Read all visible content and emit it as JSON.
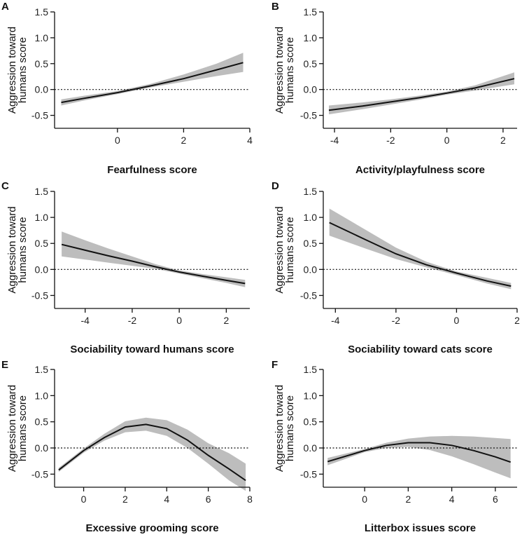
{
  "figure": {
    "style": {
      "band_color": "#bdbdbd",
      "line_color": "#111111"
    }
  },
  "chart_data": [
    {
      "panel": "A",
      "type": "line",
      "xlabel": "Fearfulness score",
      "ylabel_lines": [
        "Aggression toward",
        "humans score"
      ],
      "xlim": [
        -1.9,
        4.0
      ],
      "ylim": [
        -0.75,
        1.5
      ],
      "xticks": [
        0,
        2,
        4
      ],
      "yticks": [
        -0.5,
        0.0,
        0.5,
        1.0,
        1.5
      ],
      "ytick_labels": [
        "-0.5",
        "0.0",
        "0.5",
        "1.0",
        "1.5"
      ],
      "reference_y": 0,
      "x": [
        -1.7,
        -1.0,
        0.0,
        1.0,
        2.0,
        3.0,
        3.8
      ],
      "y": [
        -0.25,
        -0.17,
        -0.06,
        0.07,
        0.21,
        0.38,
        0.52
      ],
      "lower": [
        -0.31,
        -0.21,
        -0.09,
        0.04,
        0.15,
        0.26,
        0.34
      ],
      "upper": [
        -0.19,
        -0.12,
        -0.03,
        0.11,
        0.29,
        0.5,
        0.71
      ]
    },
    {
      "panel": "B",
      "type": "line",
      "xlabel": "Activity/playfulness score",
      "ylabel_lines": [
        "Aggression toward",
        "humans score"
      ],
      "xlim": [
        -4.4,
        2.5
      ],
      "ylim": [
        -0.75,
        1.5
      ],
      "xticks": [
        -4,
        -2,
        0,
        2
      ],
      "yticks": [
        -0.5,
        0.0,
        0.5,
        1.0,
        1.5
      ],
      "ytick_labels": [
        "-0.5",
        "0.0",
        "0.5",
        "1.0",
        "1.5"
      ],
      "reference_y": 0,
      "x": [
        -4.2,
        -3.0,
        -2.0,
        -1.0,
        0.0,
        1.0,
        2.4
      ],
      "y": [
        -0.4,
        -0.32,
        -0.24,
        -0.16,
        -0.07,
        0.03,
        0.21
      ],
      "lower": [
        -0.48,
        -0.38,
        -0.29,
        -0.2,
        -0.1,
        -0.02,
        0.1
      ],
      "upper": [
        -0.31,
        -0.25,
        -0.19,
        -0.12,
        -0.04,
        0.08,
        0.33
      ]
    },
    {
      "panel": "C",
      "type": "line",
      "xlabel": "Sociability toward humans score",
      "ylabel_lines": [
        "Aggression toward",
        "humans score"
      ],
      "xlim": [
        -5.3,
        3.0
      ],
      "ylim": [
        -0.75,
        1.5
      ],
      "xticks": [
        -4,
        -2,
        0,
        2
      ],
      "yticks": [
        -0.5,
        0.0,
        0.5,
        1.0,
        1.5
      ],
      "ytick_labels": [
        "-0.5",
        "0.0",
        "0.5",
        "1.0",
        "1.5"
      ],
      "reference_y": 0,
      "x": [
        -5.0,
        -4.0,
        -3.0,
        -2.0,
        -1.0,
        0.0,
        1.0,
        2.0,
        2.8
      ],
      "y": [
        0.48,
        0.37,
        0.26,
        0.16,
        0.05,
        -0.05,
        -0.13,
        -0.21,
        -0.27
      ],
      "lower": [
        0.25,
        0.19,
        0.13,
        0.07,
        0.01,
        -0.08,
        -0.17,
        -0.26,
        -0.34
      ],
      "upper": [
        0.73,
        0.56,
        0.4,
        0.25,
        0.1,
        -0.02,
        -0.09,
        -0.15,
        -0.2
      ]
    },
    {
      "panel": "D",
      "type": "line",
      "xlabel": "Sociability toward cats score",
      "ylabel_lines": [
        "Aggression toward",
        "humans score"
      ],
      "xlim": [
        -4.4,
        2.0
      ],
      "ylim": [
        -0.75,
        1.5
      ],
      "xticks": [
        -4,
        -2,
        0,
        2
      ],
      "yticks": [
        -0.5,
        0.0,
        0.5,
        1.0,
        1.5
      ],
      "ytick_labels": [
        "-0.5",
        "0.0",
        "0.5",
        "1.0",
        "1.5"
      ],
      "reference_y": 0,
      "x": [
        -4.2,
        -3.0,
        -2.0,
        -1.0,
        0.0,
        1.0,
        1.8
      ],
      "y": [
        0.9,
        0.57,
        0.3,
        0.09,
        -0.07,
        -0.22,
        -0.32
      ],
      "lower": [
        0.65,
        0.4,
        0.2,
        0.04,
        -0.11,
        -0.27,
        -0.38
      ],
      "upper": [
        1.17,
        0.76,
        0.42,
        0.15,
        -0.04,
        -0.16,
        -0.26
      ]
    },
    {
      "panel": "E",
      "type": "line",
      "xlabel": "Excessive grooming score",
      "ylabel_lines": [
        "Aggression toward",
        "humans score"
      ],
      "xlim": [
        -1.4,
        8.0
      ],
      "ylim": [
        -0.75,
        1.5
      ],
      "xticks": [
        0,
        2,
        4,
        6,
        8
      ],
      "yticks": [
        -0.5,
        0.0,
        0.5,
        1.0,
        1.5
      ],
      "ytick_labels": [
        "-0.5",
        "0.0",
        "0.5",
        "1.0",
        "1.5"
      ],
      "reference_y": 0,
      "x": [
        -1.2,
        0.0,
        1.0,
        2.0,
        3.0,
        4.0,
        5.0,
        6.0,
        7.0,
        7.8
      ],
      "y": [
        -0.42,
        -0.05,
        0.2,
        0.4,
        0.45,
        0.37,
        0.15,
        -0.14,
        -0.4,
        -0.62
      ],
      "lower": [
        -0.46,
        -0.09,
        0.14,
        0.3,
        0.33,
        0.23,
        0.0,
        -0.3,
        -0.62,
        -0.82
      ],
      "upper": [
        -0.38,
        -0.01,
        0.27,
        0.51,
        0.58,
        0.53,
        0.35,
        0.09,
        -0.1,
        -0.3
      ]
    },
    {
      "panel": "F",
      "type": "line",
      "xlabel": "Litterbox issues score",
      "ylabel_lines": [
        "Aggression toward",
        "humans score"
      ],
      "xlim": [
        -1.9,
        7.0
      ],
      "ylim": [
        -0.75,
        1.5
      ],
      "xticks": [
        0,
        2,
        4,
        6
      ],
      "yticks": [
        -0.5,
        0.0,
        0.5,
        1.0,
        1.5
      ],
      "ytick_labels": [
        "-0.5",
        "0.0",
        "0.5",
        "1.0",
        "1.5"
      ],
      "reference_y": 0,
      "x": [
        -1.7,
        0.0,
        1.0,
        2.0,
        3.0,
        4.0,
        5.0,
        6.0,
        6.7
      ],
      "y": [
        -0.26,
        -0.05,
        0.05,
        0.1,
        0.1,
        0.05,
        -0.05,
        -0.17,
        -0.27
      ],
      "lower": [
        -0.33,
        -0.08,
        0.0,
        0.02,
        -0.04,
        -0.16,
        -0.31,
        -0.47,
        -0.58
      ],
      "upper": [
        -0.19,
        -0.02,
        0.1,
        0.18,
        0.22,
        0.23,
        0.22,
        0.19,
        0.17
      ]
    }
  ]
}
